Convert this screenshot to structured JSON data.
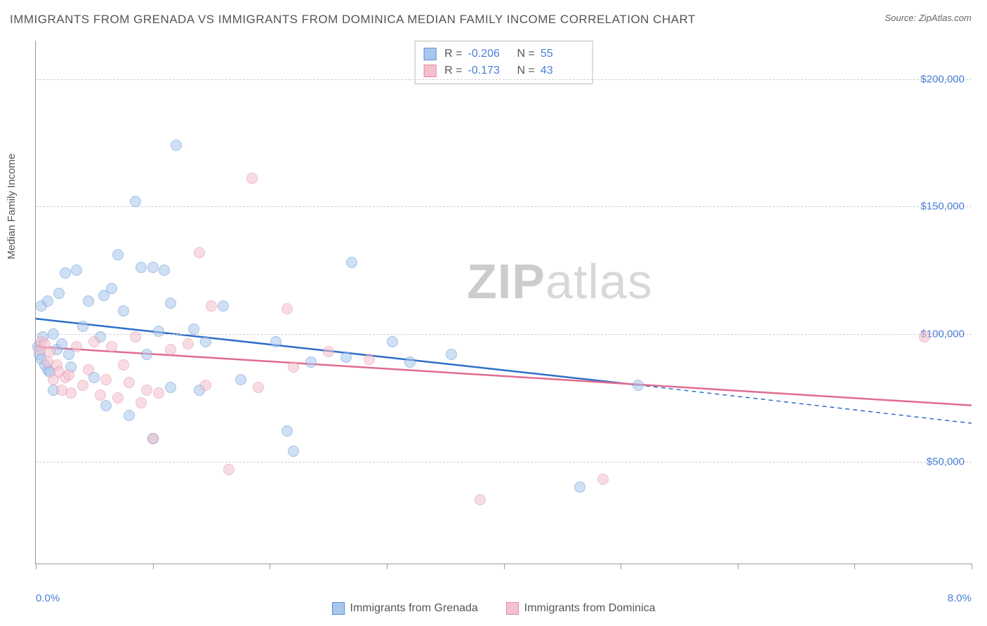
{
  "title": "IMMIGRANTS FROM GRENADA VS IMMIGRANTS FROM DOMINICA MEDIAN FAMILY INCOME CORRELATION CHART",
  "source_prefix": "Source: ",
  "source_name": "ZipAtlas.com",
  "ylabel": "Median Family Income",
  "watermark_bold": "ZIP",
  "watermark_rest": "atlas",
  "chart": {
    "type": "scatter",
    "xlim": [
      0,
      8
    ],
    "ylim": [
      10000,
      215000
    ],
    "xticks": [
      0,
      1,
      2,
      3,
      4,
      5,
      6,
      7,
      8
    ],
    "xlim_labels": {
      "min": "0.0%",
      "max": "8.0%"
    },
    "yticks": [
      {
        "v": 50000,
        "label": "$50,000"
      },
      {
        "v": 100000,
        "label": "$100,000"
      },
      {
        "v": 150000,
        "label": "$150,000"
      },
      {
        "v": 200000,
        "label": "$200,000"
      }
    ],
    "grid_color": "#d0d0d0",
    "axis_color": "#999999",
    "background_color": "#ffffff",
    "point_radius": 8,
    "point_opacity": 0.55,
    "series": [
      {
        "key": "grenada",
        "label": "Immigrants from Grenada",
        "fill": "#a9c7ec",
        "stroke": "#5a8fd6",
        "line_color": "#2f6fc7",
        "R": "-0.206",
        "N": "55",
        "trend": {
          "x1": 0,
          "y1": 106000,
          "x2": 5.15,
          "y2": 80000,
          "x_extend": 8,
          "y_extend": 65000
        },
        "points": [
          [
            0.02,
            95000
          ],
          [
            0.03,
            92000
          ],
          [
            0.05,
            111000
          ],
          [
            0.05,
            90000
          ],
          [
            0.06,
            99000
          ],
          [
            0.08,
            88000
          ],
          [
            0.1,
            113000
          ],
          [
            0.1,
            86000
          ],
          [
            0.12,
            85000
          ],
          [
            0.15,
            100000
          ],
          [
            0.15,
            78000
          ],
          [
            0.18,
            94000
          ],
          [
            0.2,
            116000
          ],
          [
            0.22,
            96000
          ],
          [
            0.25,
            124000
          ],
          [
            0.28,
            92000
          ],
          [
            0.3,
            87000
          ],
          [
            0.35,
            125000
          ],
          [
            0.4,
            103000
          ],
          [
            0.45,
            113000
          ],
          [
            0.5,
            83000
          ],
          [
            0.55,
            99000
          ],
          [
            0.58,
            115000
          ],
          [
            0.6,
            72000
          ],
          [
            0.65,
            118000
          ],
          [
            0.7,
            131000
          ],
          [
            0.75,
            109000
          ],
          [
            0.8,
            68000
          ],
          [
            0.85,
            152000
          ],
          [
            0.9,
            126000
          ],
          [
            0.95,
            92000
          ],
          [
            1.0,
            59000
          ],
          [
            1.0,
            126000
          ],
          [
            1.05,
            101000
          ],
          [
            1.1,
            125000
          ],
          [
            1.15,
            112000
          ],
          [
            1.15,
            79000
          ],
          [
            1.2,
            174000
          ],
          [
            1.35,
            102000
          ],
          [
            1.4,
            78000
          ],
          [
            1.45,
            97000
          ],
          [
            1.6,
            111000
          ],
          [
            1.75,
            82000
          ],
          [
            2.05,
            97000
          ],
          [
            2.15,
            62000
          ],
          [
            2.2,
            54000
          ],
          [
            2.35,
            89000
          ],
          [
            2.65,
            91000
          ],
          [
            2.7,
            128000
          ],
          [
            3.05,
            97000
          ],
          [
            3.2,
            89000
          ],
          [
            3.55,
            92000
          ],
          [
            4.65,
            40000
          ],
          [
            5.15,
            80000
          ]
        ]
      },
      {
        "key": "dominica",
        "label": "Immigrants from Dominica",
        "fill": "#f4c1cd",
        "stroke": "#e48aa3",
        "line_color": "#e06d8e",
        "R": "-0.173",
        "N": "43",
        "trend": {
          "x1": 0,
          "y1": 95000,
          "x2": 8,
          "y2": 72000
        },
        "points": [
          [
            0.03,
            94000
          ],
          [
            0.05,
            97000
          ],
          [
            0.08,
            96000
          ],
          [
            0.1,
            89000
          ],
          [
            0.12,
            93000
          ],
          [
            0.15,
            82000
          ],
          [
            0.18,
            88000
          ],
          [
            0.2,
            85000
          ],
          [
            0.22,
            78000
          ],
          [
            0.25,
            83000
          ],
          [
            0.28,
            84000
          ],
          [
            0.3,
            77000
          ],
          [
            0.35,
            95000
          ],
          [
            0.4,
            80000
          ],
          [
            0.45,
            86000
          ],
          [
            0.5,
            97000
          ],
          [
            0.55,
            76000
          ],
          [
            0.6,
            82000
          ],
          [
            0.65,
            95000
          ],
          [
            0.7,
            75000
          ],
          [
            0.75,
            88000
          ],
          [
            0.8,
            81000
          ],
          [
            0.85,
            99000
          ],
          [
            0.9,
            73000
          ],
          [
            0.95,
            78000
          ],
          [
            1.0,
            59000
          ],
          [
            1.05,
            77000
          ],
          [
            1.15,
            94000
          ],
          [
            1.3,
            96000
          ],
          [
            1.4,
            132000
          ],
          [
            1.45,
            80000
          ],
          [
            1.5,
            111000
          ],
          [
            1.65,
            47000
          ],
          [
            1.85,
            161000
          ],
          [
            1.9,
            79000
          ],
          [
            2.15,
            110000
          ],
          [
            2.2,
            87000
          ],
          [
            2.5,
            93000
          ],
          [
            2.85,
            90000
          ],
          [
            3.8,
            35000
          ],
          [
            4.85,
            43000
          ],
          [
            7.6,
            99000
          ]
        ]
      }
    ]
  }
}
